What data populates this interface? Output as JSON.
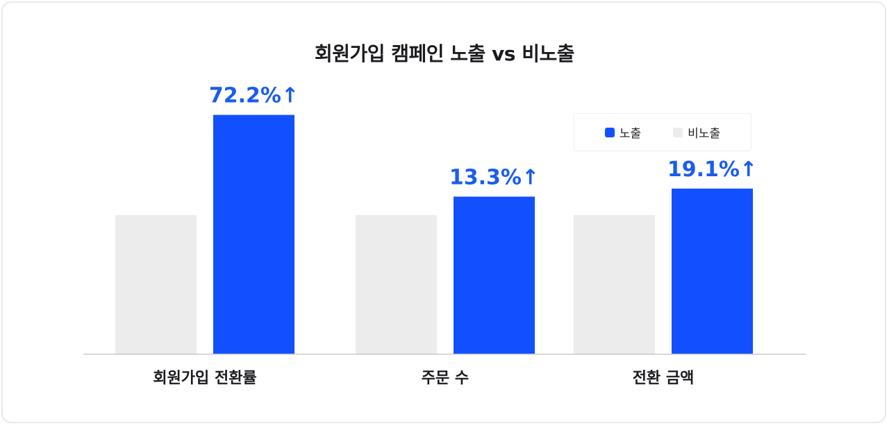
{
  "title": "회원가입 캠페인 노출 vs 비노출",
  "colors": {
    "exposed": "#1250ff",
    "non_exposed": "#ececec",
    "label": "#1a5cf0",
    "axis": "#c8c8c8"
  },
  "chart_data": {
    "type": "bar",
    "title": "회원가입 캠페인 노출 vs 비노출",
    "categories": [
      "회원가입 전환률",
      "주문 수",
      "전환 금액"
    ],
    "series": [
      {
        "name": "비노출",
        "values": [
          100,
          100,
          100
        ]
      },
      {
        "name": "노출",
        "values": [
          172.2,
          113.3,
          119.1
        ]
      }
    ],
    "data_labels": [
      "72.2%↑",
      "13.3%↑",
      "19.1%↑"
    ],
    "ylim": [
      0,
      240
    ],
    "grid": false,
    "legend_position": "top-right",
    "xlabel": "",
    "ylabel": ""
  },
  "legend": {
    "items": [
      {
        "label": "노출"
      },
      {
        "label": "비노출"
      }
    ]
  }
}
